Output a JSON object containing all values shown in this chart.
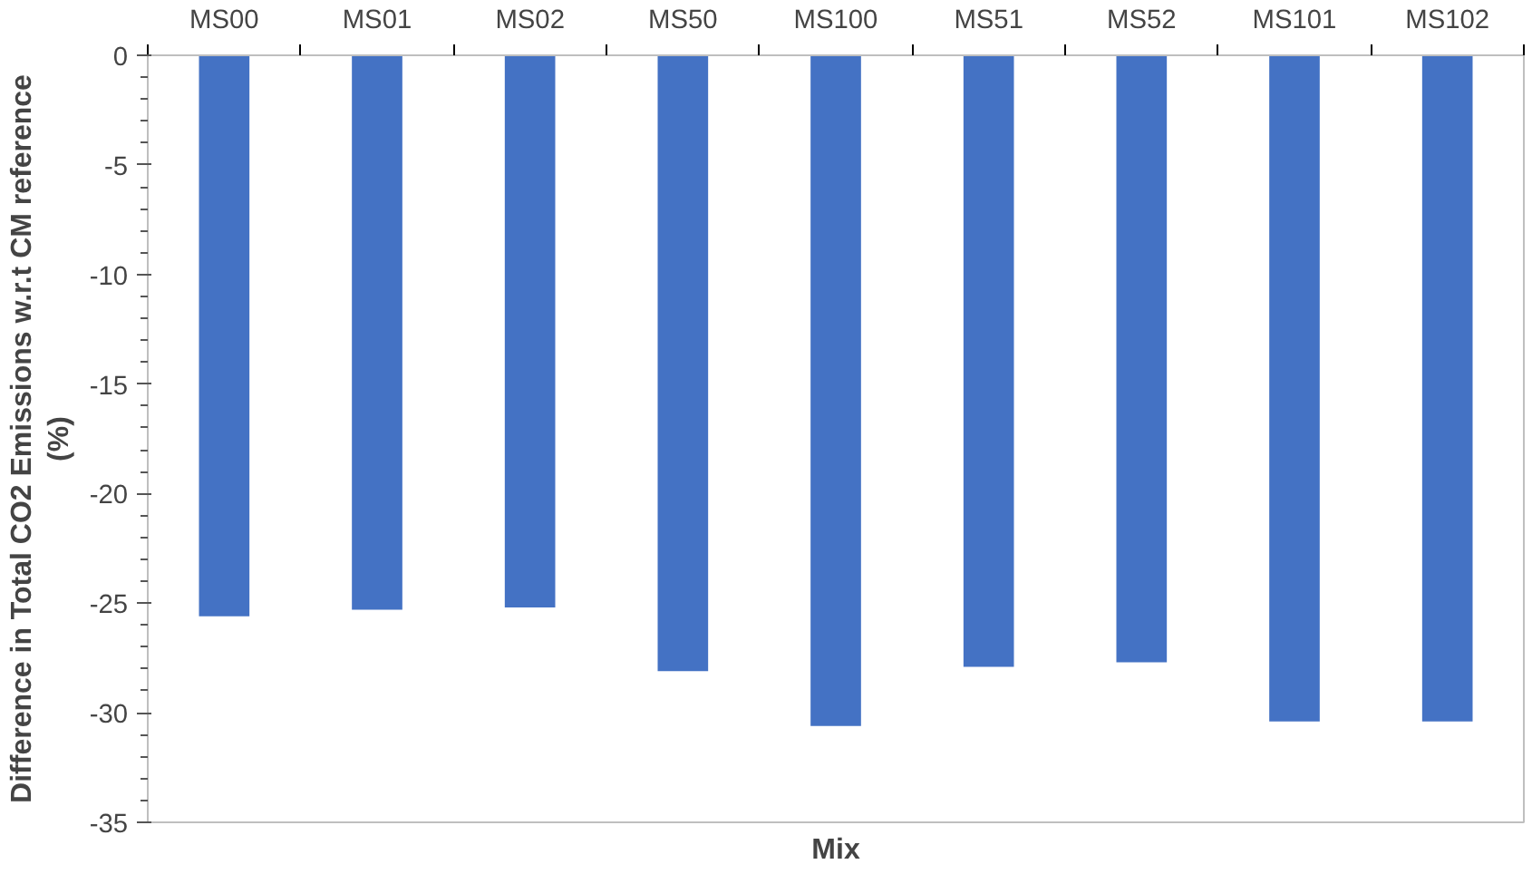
{
  "chart_data": {
    "type": "bar",
    "xlabel": "Mix",
    "ylabel": "Difference in Total CO2 Emissions w.r.t CM reference\n(%)",
    "categories": [
      "MS00",
      "MS01",
      "MS02",
      "MS50",
      "MS100",
      "MS51",
      "MS52",
      "MS101",
      "MS102"
    ],
    "values": [
      -25.6,
      -25.3,
      -25.2,
      -28.1,
      -30.6,
      -27.9,
      -27.7,
      -30.4,
      -30.4
    ],
    "color": "#4472c4",
    "ylim": [
      -35,
      0
    ],
    "yticks": [
      -35,
      -30,
      -25,
      -20,
      -15,
      -10,
      -5,
      0
    ],
    "grid": false
  }
}
